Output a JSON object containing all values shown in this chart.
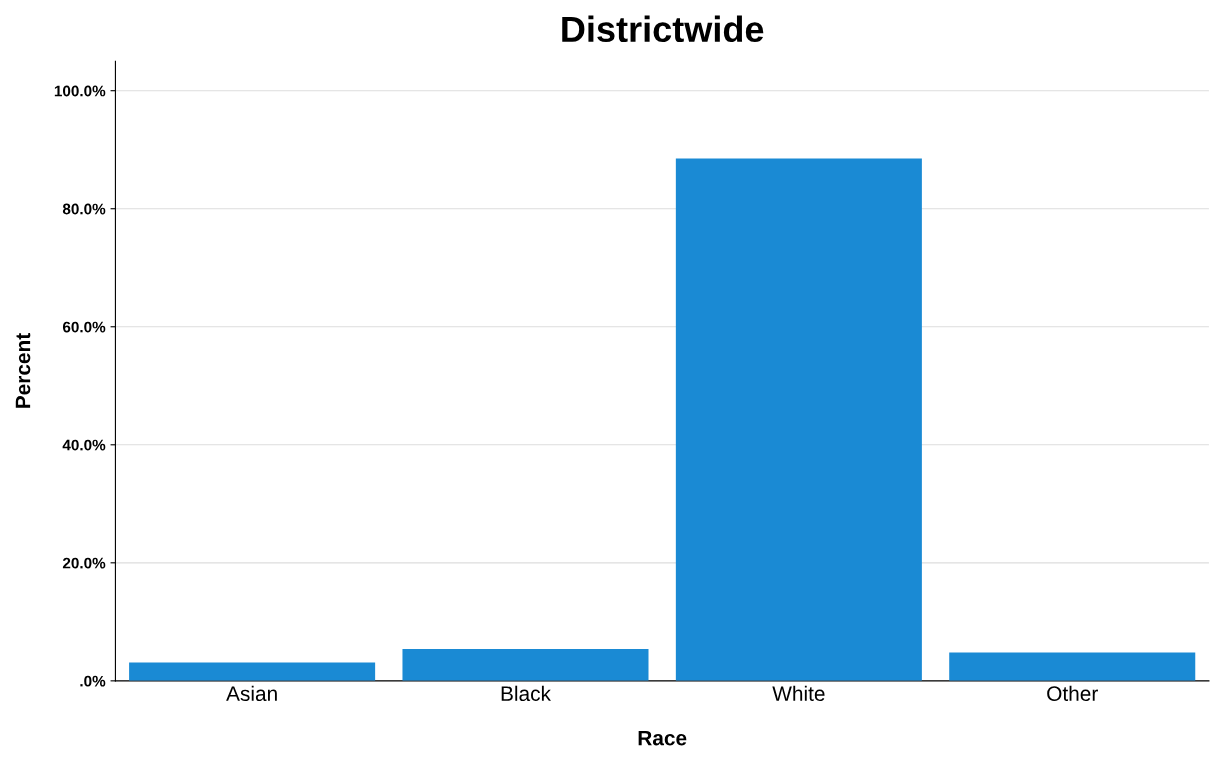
{
  "chart_data": {
    "type": "bar",
    "title": "Districtwide",
    "xlabel": "Race",
    "ylabel": "Percent",
    "categories": [
      "Asian",
      "Black",
      "White",
      "Other"
    ],
    "values": [
      3.1,
      5.4,
      88.5,
      4.8
    ],
    "color": "#1a8ad4",
    "ylim": [
      0,
      105
    ],
    "yticks": [
      {
        "value": 0,
        "label": ".0%"
      },
      {
        "value": 20,
        "label": "20.0%"
      },
      {
        "value": 40,
        "label": "40.0%"
      },
      {
        "value": 60,
        "label": "60.0%"
      },
      {
        "value": 80,
        "label": "80.0%"
      },
      {
        "value": 100,
        "label": "100.0%"
      }
    ],
    "grid": "y"
  }
}
